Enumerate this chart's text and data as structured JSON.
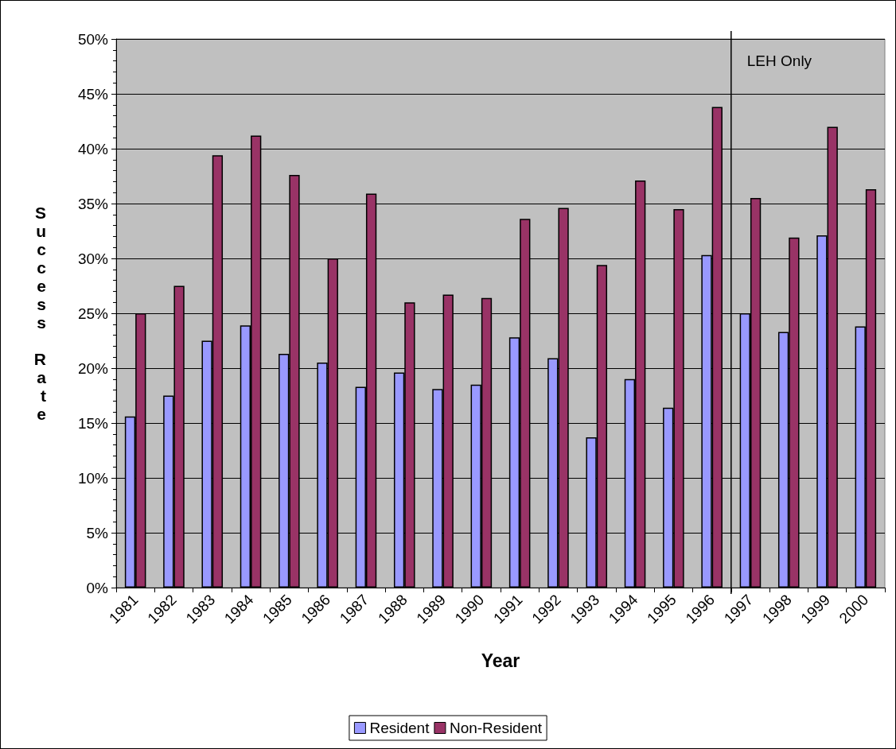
{
  "chart_data": {
    "type": "bar",
    "xlabel": "Year",
    "ylabel": "Success Rate",
    "categories": [
      "1981",
      "1982",
      "1983",
      "1984",
      "1985",
      "1986",
      "1987",
      "1988",
      "1989",
      "1990",
      "1991",
      "1992",
      "1993",
      "1994",
      "1995",
      "1996",
      "1997",
      "1998",
      "1999",
      "2000"
    ],
    "series": [
      {
        "name": "Resident",
        "color": "#9999ff",
        "values": [
          15.6,
          17.5,
          22.5,
          23.9,
          21.3,
          20.5,
          18.3,
          19.6,
          18.1,
          18.5,
          22.8,
          20.9,
          13.7,
          19.0,
          16.4,
          30.3,
          25.0,
          23.3,
          32.1,
          23.8
        ]
      },
      {
        "name": "Non-Resident",
        "color": "#993366",
        "values": [
          25.0,
          27.5,
          39.4,
          41.2,
          37.6,
          30.0,
          35.9,
          26.0,
          26.7,
          26.4,
          33.6,
          34.6,
          29.4,
          37.1,
          34.5,
          43.8,
          35.5,
          31.9,
          42.0,
          36.3
        ]
      }
    ],
    "ylim": [
      0,
      50
    ],
    "yticks": [
      {
        "value": 0,
        "label": "0%"
      },
      {
        "value": 5,
        "label": "5%"
      },
      {
        "value": 10,
        "label": "10%"
      },
      {
        "value": 15,
        "label": "15%"
      },
      {
        "value": 20,
        "label": "20%"
      },
      {
        "value": 25,
        "label": "25%"
      },
      {
        "value": 30,
        "label": "30%"
      },
      {
        "value": 35,
        "label": "35%"
      },
      {
        "value": 40,
        "label": "40%"
      },
      {
        "value": 45,
        "label": "45%"
      },
      {
        "value": 50,
        "label": "50%"
      }
    ],
    "ref_lines": [
      {
        "axis": "x",
        "value": "1997",
        "label": "LEH Only",
        "color": "#000000"
      }
    ],
    "grid": "y",
    "legend": "bottom"
  }
}
